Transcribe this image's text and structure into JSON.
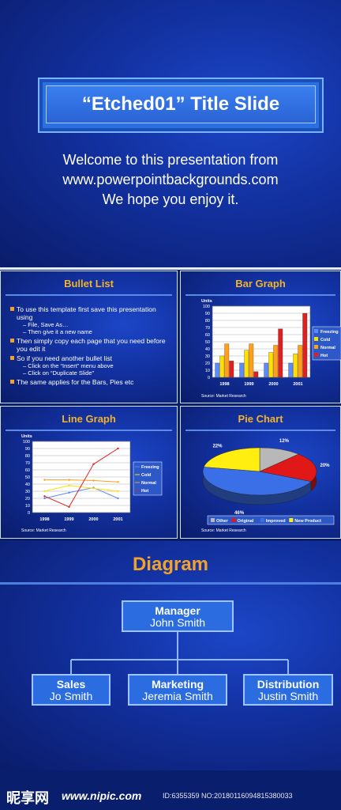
{
  "title_slide": {
    "title": "“Etched01” Title Slide",
    "welcome": [
      "Welcome to this presentation from",
      "www.powerpointbackgrounds.com",
      "We hope you enjoy it."
    ]
  },
  "bullet_panel": {
    "title": "Bullet List",
    "items": [
      {
        "text": "To use this template first save this presentation using",
        "subs": [
          "– File, Save As…",
          "– Then give it a new name"
        ]
      },
      {
        "text": "Then simply copy each page that you need before you edit it",
        "subs": []
      },
      {
        "text": "So if you need another bullet list",
        "subs": [
          "– Click on the “Insert” menu above",
          "– Click on “Duplicate Slide”"
        ]
      },
      {
        "text": "The same applies for the Bars, Pies etc",
        "subs": []
      }
    ]
  },
  "bar_panel": {
    "title": "Bar Graph",
    "source": "Source: Market Research"
  },
  "line_panel": {
    "title": "Line Graph",
    "source": "Source: Market Research"
  },
  "pie_panel": {
    "title": "Pie Chart",
    "source": "Source: Market Research"
  },
  "colors": {
    "freezing": "#5b8cff",
    "cold": "#ffe000",
    "normal": "#ff9f1a",
    "hot": "#e02020",
    "other": "#b8b8b8",
    "original": "#e01818",
    "improved": "#3a6fe8",
    "new_product": "#ffee10"
  },
  "chart_data": [
    {
      "type": "bar",
      "title": "Bar Graph",
      "ylabel": "Units",
      "ylim": [
        0,
        100
      ],
      "yticks": [
        0,
        10,
        20,
        30,
        40,
        50,
        60,
        70,
        80,
        90,
        100
      ],
      "categories": [
        "1998",
        "1999",
        "2000",
        "2001"
      ],
      "series": [
        {
          "name": "Freezing",
          "values": [
            20,
            20,
            20,
            20
          ]
        },
        {
          "name": "Cold",
          "values": [
            30,
            38,
            35,
            33
          ]
        },
        {
          "name": "Normal",
          "values": [
            47,
            47,
            45,
            45
          ]
        },
        {
          "name": "Hot",
          "values": [
            23,
            8,
            68,
            90
          ]
        }
      ],
      "legend": "right",
      "grid": true
    },
    {
      "type": "line",
      "title": "Line Graph",
      "ylabel": "Units",
      "ylim": [
        0,
        100
      ],
      "yticks": [
        0,
        10,
        20,
        30,
        40,
        50,
        60,
        70,
        80,
        90,
        100
      ],
      "categories": [
        "1998",
        "1999",
        "2000",
        "2001"
      ],
      "series": [
        {
          "name": "Freezing",
          "values": [
            20,
            28,
            35,
            20
          ]
        },
        {
          "name": "Cold",
          "values": [
            30,
            38,
            34,
            30
          ]
        },
        {
          "name": "Normal",
          "values": [
            46,
            46,
            45,
            43
          ]
        },
        {
          "name": "Hot",
          "values": [
            23,
            8,
            68,
            90
          ]
        }
      ],
      "legend": "right",
      "grid": true
    },
    {
      "type": "pie",
      "title": "Pie Chart",
      "slices": [
        {
          "name": "Other",
          "value": 12
        },
        {
          "name": "Original",
          "value": 20
        },
        {
          "name": "Improved",
          "value": 46
        },
        {
          "name": "New Product",
          "value": 22
        }
      ],
      "legend": "bottom"
    }
  ],
  "diagram": {
    "title": "Diagram",
    "manager": {
      "role": "Manager",
      "name": "John Smith"
    },
    "reports": [
      {
        "role": "Sales",
        "name": "Jo Smith"
      },
      {
        "role": "Marketing",
        "name": "Jeremia Smith"
      },
      {
        "role": "Distribution",
        "name": "Justin Smith"
      }
    ]
  },
  "watermark": {
    "logo": "昵享网",
    "site": "www.nipic.com",
    "id": "ID:6355359 NO:20180116094815380033"
  }
}
